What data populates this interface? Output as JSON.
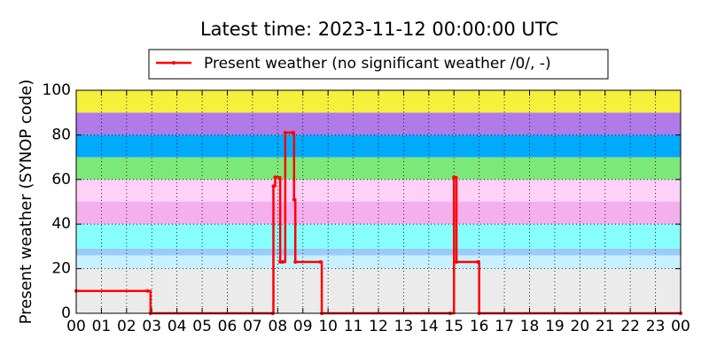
{
  "chart_data": {
    "type": "line",
    "title": "Latest time: 2023-11-12 00:00:00 UTC",
    "y_label": "Present weather (SYNOP code)",
    "x": [
      0,
      2.83,
      2.95,
      7.8,
      7.83,
      7.9,
      8.1,
      8.2,
      8.3,
      8.6,
      8.65,
      8.7,
      9.7,
      9.75,
      14.85,
      15.0,
      15.1,
      15.95,
      16.0,
      24
    ],
    "series": [
      {
        "name": "Present weather (no significant weather /0/, -)",
        "color": "#ff0000",
        "values": [
          10,
          10,
          0,
          0,
          57,
          61,
          23,
          23,
          81,
          81,
          51,
          23,
          23,
          0,
          0,
          61,
          23,
          23,
          0,
          0
        ]
      }
    ],
    "step": true,
    "xlim": [
      0,
      24
    ],
    "xticks": [
      {
        "value": 0,
        "label": "00"
      },
      {
        "value": 1,
        "label": "01"
      },
      {
        "value": 2,
        "label": "02"
      },
      {
        "value": 3,
        "label": "03"
      },
      {
        "value": 4,
        "label": "04"
      },
      {
        "value": 5,
        "label": "05"
      },
      {
        "value": 6,
        "label": "06"
      },
      {
        "value": 7,
        "label": "07"
      },
      {
        "value": 8,
        "label": "08"
      },
      {
        "value": 9,
        "label": "09"
      },
      {
        "value": 10,
        "label": "10"
      },
      {
        "value": 11,
        "label": "11"
      },
      {
        "value": 12,
        "label": "12"
      },
      {
        "value": 13,
        "label": "13"
      },
      {
        "value": 14,
        "label": "14"
      },
      {
        "value": 15,
        "label": "15"
      },
      {
        "value": 16,
        "label": "16"
      },
      {
        "value": 17,
        "label": "17"
      },
      {
        "value": 18,
        "label": "18"
      },
      {
        "value": 19,
        "label": "19"
      },
      {
        "value": 20,
        "label": "20"
      },
      {
        "value": 21,
        "label": "21"
      },
      {
        "value": 22,
        "label": "22"
      },
      {
        "value": 23,
        "label": "23"
      },
      {
        "value": 24,
        "label": "00"
      }
    ],
    "ylim": [
      0,
      100
    ],
    "yticks": [
      0,
      20,
      40,
      60,
      80,
      100
    ],
    "grid": true,
    "bands": [
      {
        "from": 0,
        "to": 20,
        "color": "#ebebeb"
      },
      {
        "from": 20,
        "to": 26,
        "color": "#c8f0ff"
      },
      {
        "from": 26,
        "to": 29,
        "color": "#99ccf8"
      },
      {
        "from": 29,
        "to": 40,
        "color": "#88ffff"
      },
      {
        "from": 40,
        "to": 50,
        "color": "#f4b0ec"
      },
      {
        "from": 50,
        "to": 60,
        "color": "#ffd0f8"
      },
      {
        "from": 60,
        "to": 70,
        "color": "#7de87a"
      },
      {
        "from": 70,
        "to": 80,
        "color": "#00aaff"
      },
      {
        "from": 80,
        "to": 90,
        "color": "#b07ae8"
      },
      {
        "from": 90,
        "to": 100,
        "color": "#f5f03c"
      }
    ],
    "legend": "top"
  }
}
